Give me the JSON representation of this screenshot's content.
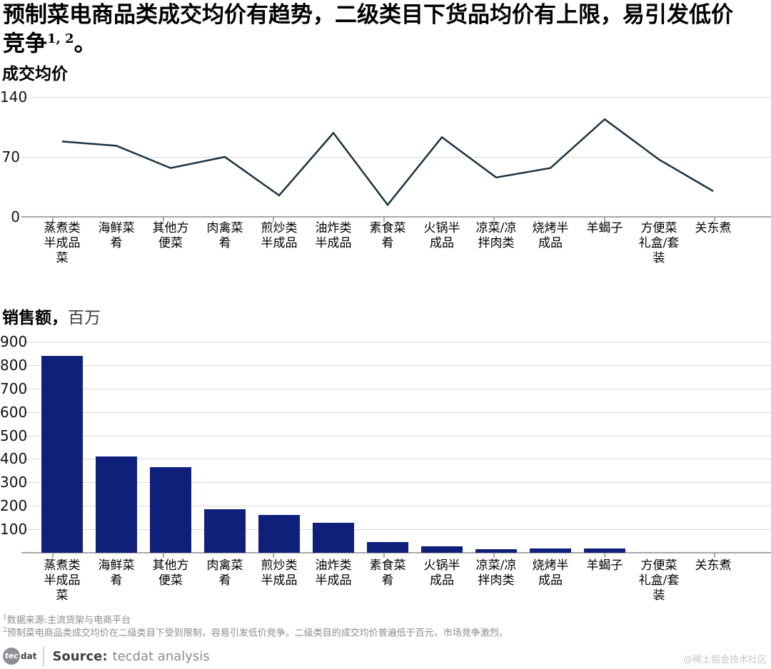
{
  "title": {
    "line1": "预制菜电商品类成交均价有趋势，二级类目下货品均价有上限，易引发低价",
    "line2_pre": "竞争",
    "superscript": "1, 2",
    "line2_end": "。"
  },
  "category_label_lines": [
    [
      "蒸煮类",
      "半成品",
      "菜"
    ],
    [
      "海鲜菜",
      "肴"
    ],
    [
      "其他方",
      "便菜"
    ],
    [
      "肉禽菜",
      "肴"
    ],
    [
      "煎炒类",
      "半成品"
    ],
    [
      "油炸类",
      "半成品"
    ],
    [
      "素食菜",
      "肴"
    ],
    [
      "火锅半",
      "成品"
    ],
    [
      "凉菜/凉",
      "拌肉类"
    ],
    [
      "烧烤半",
      "成品"
    ],
    [
      "羊蝎子"
    ],
    [
      "方便菜",
      "礼盒/套",
      "装"
    ],
    [
      "关东煮"
    ]
  ],
  "chart_data": [
    {
      "type": "line",
      "title": "成交均价",
      "categories": [
        "蒸煮类半成品菜",
        "海鲜菜肴",
        "其他方便菜",
        "肉禽菜肴",
        "煎炒类半成品",
        "油炸类半成品",
        "素食菜肴",
        "火锅半成品",
        "凉菜/凉拌肉类",
        "烧烤半成品",
        "羊蝎子",
        "方便菜礼盒/套装",
        "关东煮"
      ],
      "values": [
        88,
        83,
        57,
        70,
        25,
        98,
        14,
        93,
        46,
        57,
        114,
        67,
        30
      ],
      "ylim": [
        0,
        140
      ],
      "yticks": [
        0,
        70,
        140
      ],
      "grid": "horizontal",
      "legend": "none",
      "line_color": "#1b3242"
    },
    {
      "type": "bar",
      "title": "销售额，",
      "unit": "百万",
      "categories": [
        "蒸煮类半成品菜",
        "海鲜菜肴",
        "其他方便菜",
        "肉禽菜肴",
        "煎炒类半成品",
        "油炸类半成品",
        "素食菜肴",
        "火锅半成品",
        "凉菜/凉拌肉类",
        "烧烤半成品",
        "羊蝎子",
        "方便菜礼盒/套装",
        "关东煮"
      ],
      "values": [
        840,
        412,
        365,
        185,
        160,
        128,
        45,
        26,
        16,
        17,
        19,
        0,
        0
      ],
      "ylim": [
        0,
        900
      ],
      "yticks": [
        100,
        200,
        300,
        400,
        500,
        600,
        700,
        800,
        900
      ],
      "grid": "horizontal",
      "legend": "none",
      "bar_color": "#0f207b"
    }
  ],
  "footnotes": [
    {
      "sup": "1",
      "text": "数据来源:主流货架与电商平台"
    },
    {
      "sup": "2",
      "text": "预制菜电商品类成交均价在二级类目下受到限制，容易引发低价竞争。二级类目的成交均价普遍低于百元，市场竞争激烈。"
    }
  ],
  "source_bar": {
    "logo_tec": "tec",
    "logo_dat": "dat",
    "source_label": "Source:",
    "source_text": "tecdat analysis",
    "watermark": "@稀土掘金技术社区"
  },
  "colors": {
    "line": "#1b3242",
    "bar": "#0f207b",
    "gridline": "#d9d9d9",
    "axis": "#a8a8a8",
    "footnote": "#8c8c8c"
  }
}
